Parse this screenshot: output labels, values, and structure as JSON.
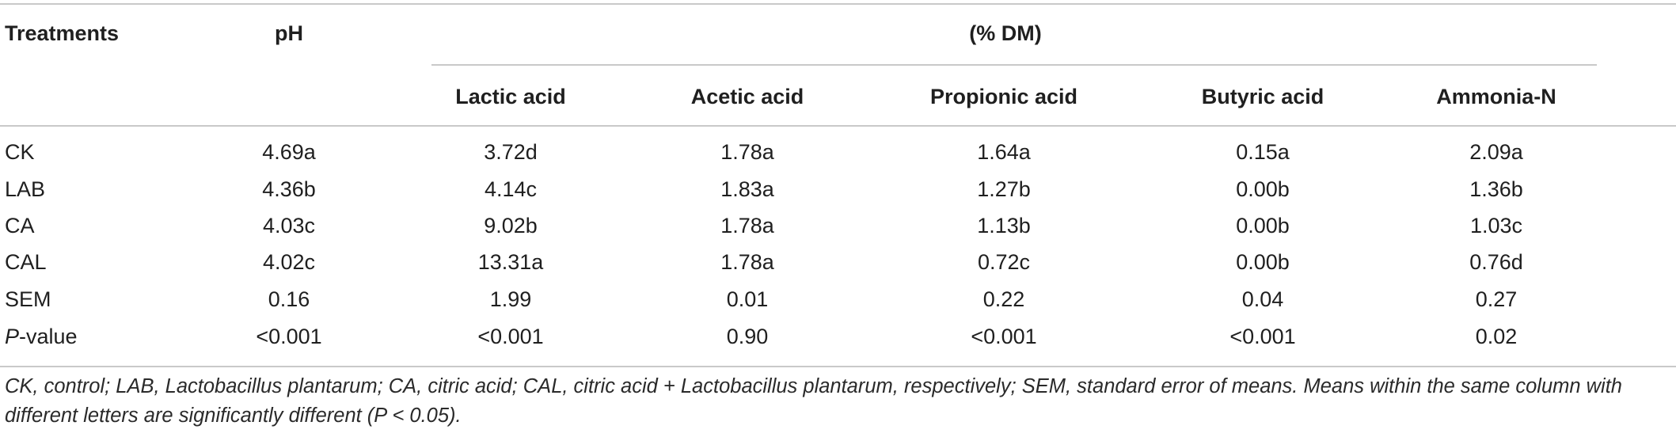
{
  "table": {
    "header": {
      "treatments": "Treatments",
      "ph": "pH",
      "group": "(% DM)",
      "subcolumns": [
        "Lactic acid",
        "Acetic acid",
        "Propionic acid",
        "Butyric acid",
        "Ammonia-N"
      ]
    },
    "rows": [
      {
        "label": "CK",
        "values": [
          "4.69a",
          "3.72d",
          "1.78a",
          "1.64a",
          "0.15a",
          "2.09a"
        ]
      },
      {
        "label": "LAB",
        "values": [
          "4.36b",
          "4.14c",
          "1.83a",
          "1.27b",
          "0.00b",
          "1.36b"
        ]
      },
      {
        "label": "CA",
        "values": [
          "4.03c",
          "9.02b",
          "1.78a",
          "1.13b",
          "0.00b",
          "1.03c"
        ]
      },
      {
        "label": "CAL",
        "values": [
          "4.02c",
          "13.31a",
          "1.78a",
          "0.72c",
          "0.00b",
          "0.76d"
        ]
      },
      {
        "label": "SEM",
        "values": [
          "0.16",
          "1.99",
          "0.01",
          "0.22",
          "0.04",
          "0.27"
        ]
      },
      {
        "label_italic": "P",
        "label_rest": "-value",
        "values": [
          "<0.001",
          "<0.001",
          "0.90",
          "<0.001",
          "<0.001",
          "0.02"
        ]
      }
    ],
    "footnote": "CK, control; LAB, Lactobacillus plantarum; CA, citric acid; CAL, citric acid + Lactobacillus plantarum, respectively; SEM, standard error of means. Means within the same column with different letters are significantly different (P < 0.05)."
  }
}
